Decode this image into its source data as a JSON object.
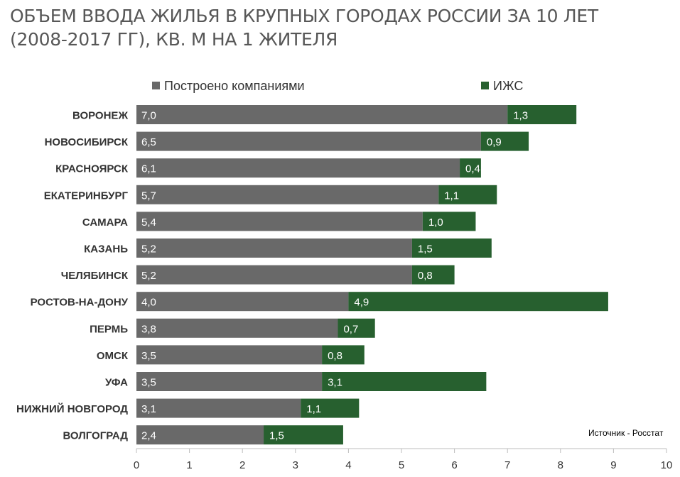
{
  "title": {
    "line1": "ОБЪЕМ ВВОДА ЖИЛЬЯ В КРУПНЫХ ГОРОДАХ РОССИИ ЗА 10 ЛЕТ",
    "line2": "(2008-2017 ГГ), КВ. М НА 1 ЖИТЕЛЯ"
  },
  "source": "Источник - Росстат",
  "colors": {
    "companies": "#696969",
    "izhs": "#27602f",
    "axis": "#bdbdbd",
    "label": "#333333"
  },
  "chart_data": {
    "type": "bar",
    "orientation": "horizontal",
    "stacked": true,
    "categories": [
      "ВОРОНЕЖ",
      "НОВОСИБИРСК",
      "КРАСНОЯРСК",
      "ЕКАТЕРИНБУРГ",
      "САМАРА",
      "КАЗАНЬ",
      "ЧЕЛЯБИНСК",
      "РОСТОВ-НА-ДОНУ",
      "ПЕРМЬ",
      "ОМСК",
      "УФА",
      "НИЖНИЙ НОВГОРОД",
      "ВОЛГОГРАД"
    ],
    "series": [
      {
        "name": "Построено компаниями",
        "values": [
          7.0,
          6.5,
          6.1,
          5.7,
          5.4,
          5.2,
          5.2,
          4.0,
          3.8,
          3.5,
          3.5,
          3.1,
          2.4
        ],
        "labels": [
          "7,0",
          "6,5",
          "6,1",
          "5,7",
          "5,4",
          "5,2",
          "5,2",
          "4,0",
          "3,8",
          "3,5",
          "3,5",
          "3,1",
          "2,4"
        ]
      },
      {
        "name": "ИЖС",
        "values": [
          1.3,
          0.9,
          0.4,
          1.1,
          1.0,
          1.5,
          0.8,
          4.9,
          0.7,
          0.8,
          3.1,
          1.1,
          1.5
        ],
        "labels": [
          "1,3",
          "0,9",
          "0,4",
          "1,1",
          "1,0",
          "1,5",
          "0,8",
          "4,9",
          "0,7",
          "0,8",
          "3,1",
          "1,1",
          "1,5"
        ]
      }
    ],
    "xlim": [
      0,
      10
    ],
    "xticks": [
      0,
      1,
      2,
      3,
      4,
      5,
      6,
      7,
      8,
      9,
      10
    ],
    "xtick_labels": [
      "0",
      "1",
      "2",
      "3",
      "4",
      "5",
      "6",
      "7",
      "8",
      "9",
      "10"
    ],
    "legend_position": "top",
    "grid": false
  }
}
